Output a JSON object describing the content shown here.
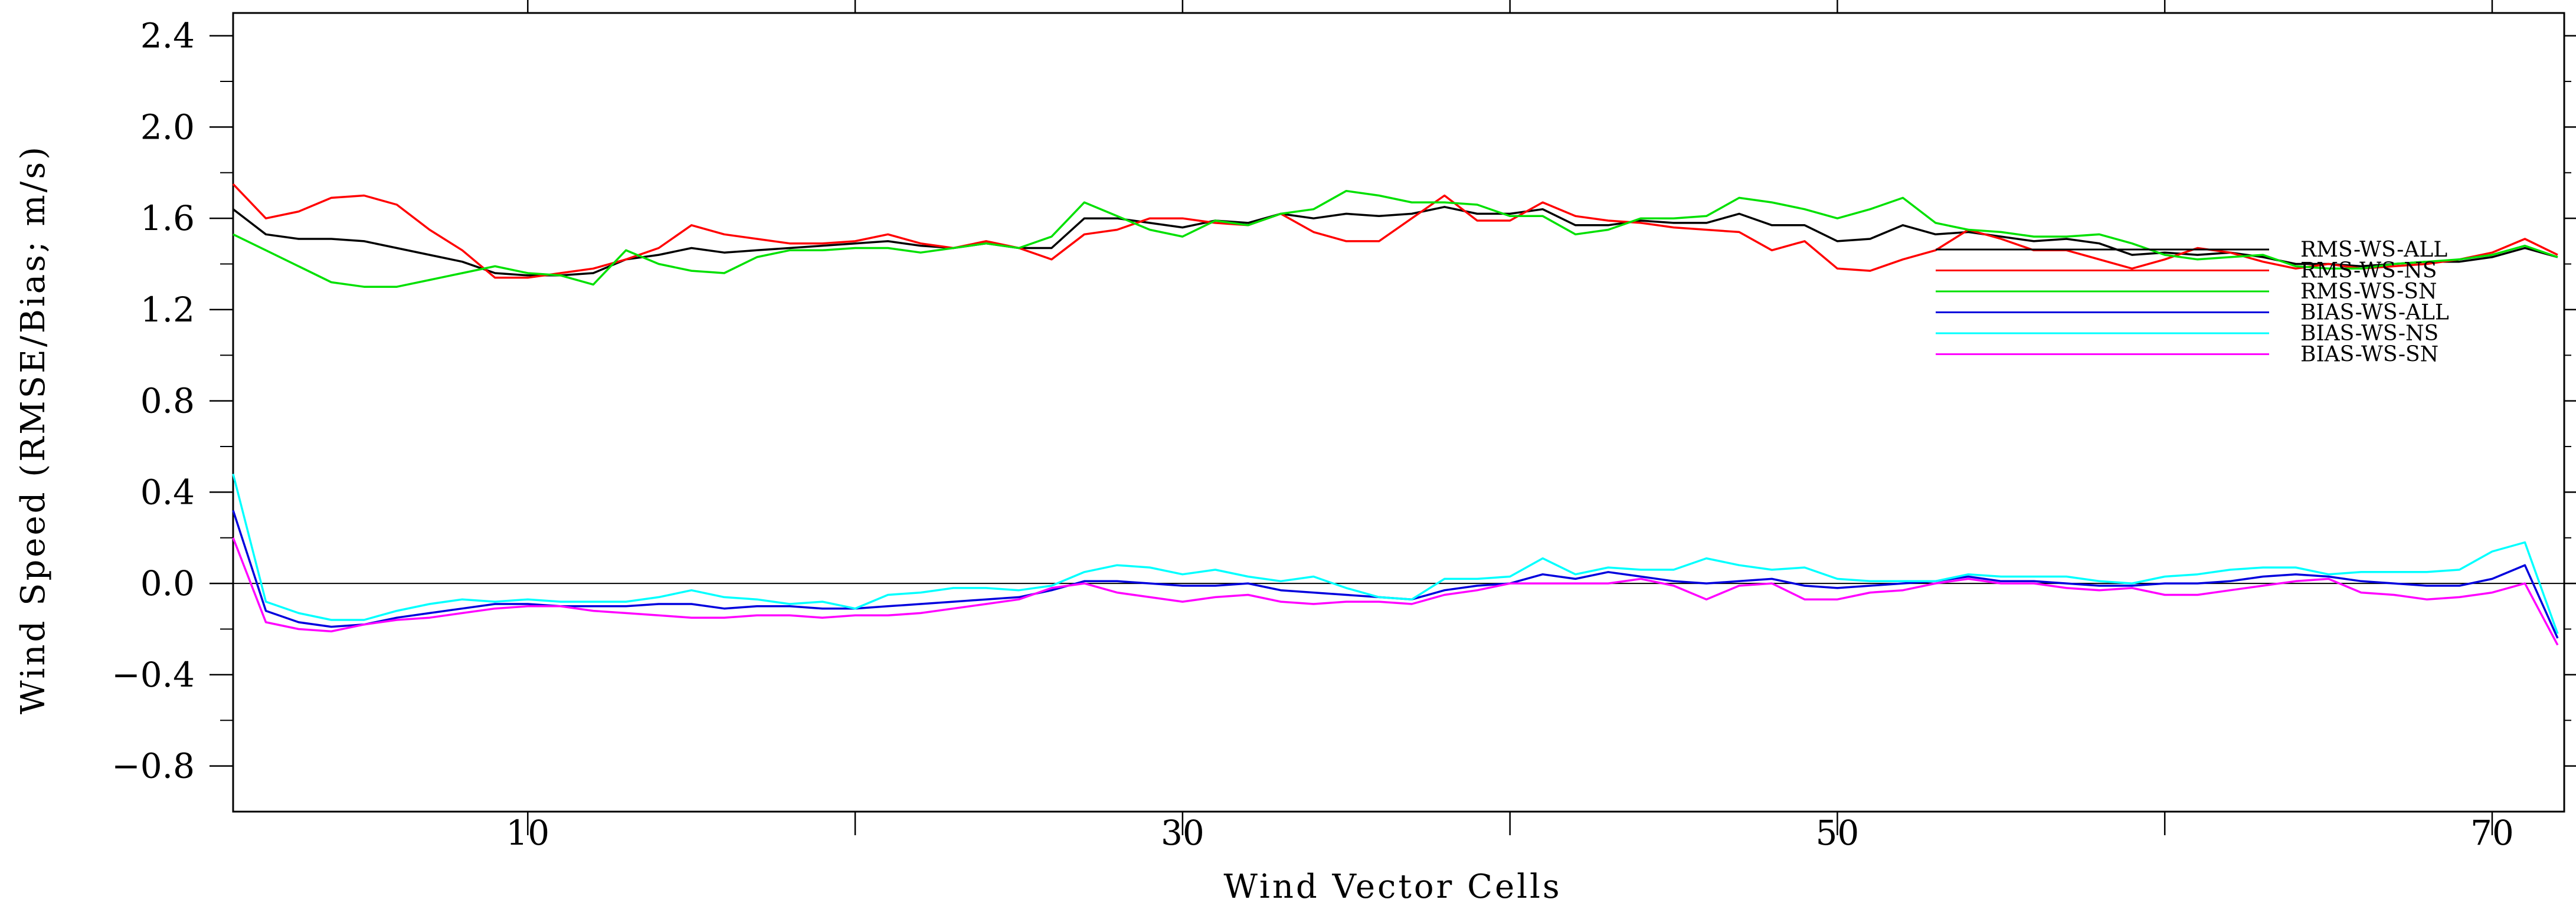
{
  "chart_data": {
    "type": "line",
    "xlabel": "Wind Vector Cells",
    "ylabel": "Wind Speed (RMSE/Bias; m/s)",
    "xlim": [
      1,
      72.2
    ],
    "ylim": [
      -1.0,
      2.5
    ],
    "x_major_ticks": [
      10,
      30,
      50,
      70
    ],
    "x_minor_ticks": [
      20,
      40,
      60
    ],
    "x_tick_labels": [
      "10",
      "30",
      "50",
      "70"
    ],
    "y_ticks": [
      2.4,
      2.0,
      1.6,
      1.2,
      0.8,
      0.4,
      0.0,
      -0.4,
      -0.8
    ],
    "y_tick_labels": [
      "2.4",
      "2.0",
      "1.6",
      "1.2",
      "0.8",
      "0.4",
      "0.0",
      "−0.4",
      "−0.8"
    ],
    "zero_line": true,
    "legend_position": "right",
    "x": [
      1,
      2,
      3,
      4,
      5,
      6,
      7,
      8,
      9,
      10,
      11,
      12,
      13,
      14,
      15,
      16,
      17,
      18,
      19,
      20,
      21,
      22,
      23,
      24,
      25,
      26,
      27,
      28,
      29,
      30,
      31,
      32,
      33,
      34,
      35,
      36,
      37,
      38,
      39,
      40,
      41,
      42,
      43,
      44,
      45,
      46,
      47,
      48,
      49,
      50,
      51,
      52,
      53,
      54,
      55,
      56,
      57,
      58,
      59,
      60,
      61,
      62,
      63,
      64,
      65,
      66,
      67,
      68,
      69,
      70,
      71,
      72
    ],
    "series": [
      {
        "name": "RMS-WS-ALL",
        "color": "#000000",
        "values": [
          1.64,
          1.53,
          1.51,
          1.51,
          1.5,
          1.47,
          1.44,
          1.41,
          1.36,
          1.35,
          1.35,
          1.36,
          1.42,
          1.44,
          1.47,
          1.45,
          1.46,
          1.47,
          1.48,
          1.49,
          1.5,
          1.48,
          1.47,
          1.49,
          1.47,
          1.47,
          1.6,
          1.6,
          1.58,
          1.56,
          1.59,
          1.58,
          1.62,
          1.6,
          1.62,
          1.61,
          1.62,
          1.65,
          1.62,
          1.62,
          1.64,
          1.57,
          1.57,
          1.59,
          1.58,
          1.58,
          1.62,
          1.57,
          1.57,
          1.5,
          1.51,
          1.57,
          1.53,
          1.54,
          1.52,
          1.5,
          1.51,
          1.49,
          1.44,
          1.45,
          1.44,
          1.45,
          1.43,
          1.4,
          1.4,
          1.39,
          1.4,
          1.41,
          1.41,
          1.43,
          1.47,
          1.43
        ]
      },
      {
        "name": "RMS-WS-NS",
        "color": "#ff0000",
        "values": [
          1.75,
          1.6,
          1.63,
          1.69,
          1.7,
          1.66,
          1.55,
          1.46,
          1.34,
          1.34,
          1.36,
          1.38,
          1.42,
          1.47,
          1.57,
          1.53,
          1.51,
          1.49,
          1.49,
          1.5,
          1.53,
          1.49,
          1.47,
          1.5,
          1.47,
          1.42,
          1.53,
          1.55,
          1.6,
          1.6,
          1.58,
          1.57,
          1.62,
          1.54,
          1.5,
          1.5,
          1.6,
          1.7,
          1.59,
          1.59,
          1.67,
          1.61,
          1.59,
          1.58,
          1.56,
          1.55,
          1.54,
          1.46,
          1.5,
          1.38,
          1.37,
          1.42,
          1.46,
          1.55,
          1.51,
          1.46,
          1.46,
          1.42,
          1.38,
          1.42,
          1.47,
          1.45,
          1.41,
          1.38,
          1.4,
          1.38,
          1.39,
          1.4,
          1.42,
          1.45,
          1.51,
          1.44
        ]
      },
      {
        "name": "RMS-WS-SN",
        "color": "#00e000",
        "values": [
          1.53,
          1.46,
          1.39,
          1.32,
          1.3,
          1.3,
          1.33,
          1.36,
          1.39,
          1.36,
          1.35,
          1.31,
          1.46,
          1.4,
          1.37,
          1.36,
          1.43,
          1.46,
          1.46,
          1.47,
          1.47,
          1.45,
          1.47,
          1.49,
          1.47,
          1.52,
          1.67,
          1.61,
          1.55,
          1.52,
          1.59,
          1.57,
          1.62,
          1.64,
          1.72,
          1.7,
          1.67,
          1.67,
          1.66,
          1.61,
          1.61,
          1.53,
          1.55,
          1.6,
          1.6,
          1.61,
          1.69,
          1.67,
          1.64,
          1.6,
          1.64,
          1.69,
          1.58,
          1.55,
          1.54,
          1.52,
          1.52,
          1.53,
          1.49,
          1.44,
          1.42,
          1.43,
          1.44,
          1.39,
          1.38,
          1.38,
          1.4,
          1.41,
          1.42,
          1.44,
          1.48,
          1.43
        ]
      },
      {
        "name": "BIAS-WS-ALL",
        "color": "#0000dd",
        "values": [
          0.32,
          -0.12,
          -0.17,
          -0.19,
          -0.18,
          -0.15,
          -0.13,
          -0.11,
          -0.09,
          -0.09,
          -0.1,
          -0.1,
          -0.1,
          -0.09,
          -0.09,
          -0.11,
          -0.1,
          -0.1,
          -0.11,
          -0.11,
          -0.1,
          -0.09,
          -0.08,
          -0.07,
          -0.06,
          -0.03,
          0.01,
          0.01,
          0.0,
          -0.01,
          -0.01,
          0.0,
          -0.03,
          -0.04,
          -0.05,
          -0.06,
          -0.07,
          -0.03,
          -0.01,
          0.0,
          0.04,
          0.02,
          0.05,
          0.03,
          0.01,
          0.0,
          0.01,
          0.02,
          -0.01,
          -0.02,
          -0.01,
          0.0,
          0.01,
          0.03,
          0.01,
          0.01,
          0.0,
          -0.01,
          -0.01,
          0.0,
          0.0,
          0.01,
          0.03,
          0.04,
          0.03,
          0.01,
          0.0,
          -0.01,
          -0.01,
          0.02,
          0.08,
          -0.24
        ]
      },
      {
        "name": "BIAS-WS-NS",
        "color": "#00ffff",
        "values": [
          0.48,
          -0.08,
          -0.13,
          -0.16,
          -0.16,
          -0.12,
          -0.09,
          -0.07,
          -0.08,
          -0.07,
          -0.08,
          -0.08,
          -0.08,
          -0.06,
          -0.03,
          -0.06,
          -0.07,
          -0.09,
          -0.08,
          -0.11,
          -0.05,
          -0.04,
          -0.02,
          -0.02,
          -0.03,
          -0.01,
          0.05,
          0.08,
          0.07,
          0.04,
          0.06,
          0.03,
          0.01,
          0.03,
          -0.02,
          -0.06,
          -0.07,
          0.02,
          0.02,
          0.03,
          0.11,
          0.04,
          0.07,
          0.06,
          0.06,
          0.11,
          0.08,
          0.06,
          0.07,
          0.02,
          0.01,
          0.01,
          0.01,
          0.04,
          0.03,
          0.03,
          0.03,
          0.01,
          0.0,
          0.03,
          0.04,
          0.06,
          0.07,
          0.07,
          0.04,
          0.05,
          0.05,
          0.05,
          0.06,
          0.14,
          0.18,
          -0.22
        ]
      },
      {
        "name": "BIAS-WS-SN",
        "color": "#ff00ff",
        "values": [
          0.2,
          -0.17,
          -0.2,
          -0.21,
          -0.18,
          -0.16,
          -0.15,
          -0.13,
          -0.11,
          -0.1,
          -0.1,
          -0.12,
          -0.13,
          -0.14,
          -0.15,
          -0.15,
          -0.14,
          -0.14,
          -0.15,
          -0.14,
          -0.14,
          -0.13,
          -0.11,
          -0.09,
          -0.07,
          -0.02,
          0.0,
          -0.04,
          -0.06,
          -0.08,
          -0.06,
          -0.05,
          -0.08,
          -0.09,
          -0.08,
          -0.08,
          -0.09,
          -0.05,
          -0.03,
          0.0,
          0.0,
          0.0,
          0.0,
          0.02,
          -0.01,
          -0.07,
          -0.01,
          0.0,
          -0.07,
          -0.07,
          -0.04,
          -0.03,
          0.0,
          0.02,
          0.0,
          0.0,
          -0.02,
          -0.03,
          -0.02,
          -0.05,
          -0.05,
          -0.03,
          -0.01,
          0.01,
          0.02,
          -0.04,
          -0.05,
          -0.07,
          -0.06,
          -0.04,
          0.0,
          -0.27
        ]
      }
    ]
  }
}
